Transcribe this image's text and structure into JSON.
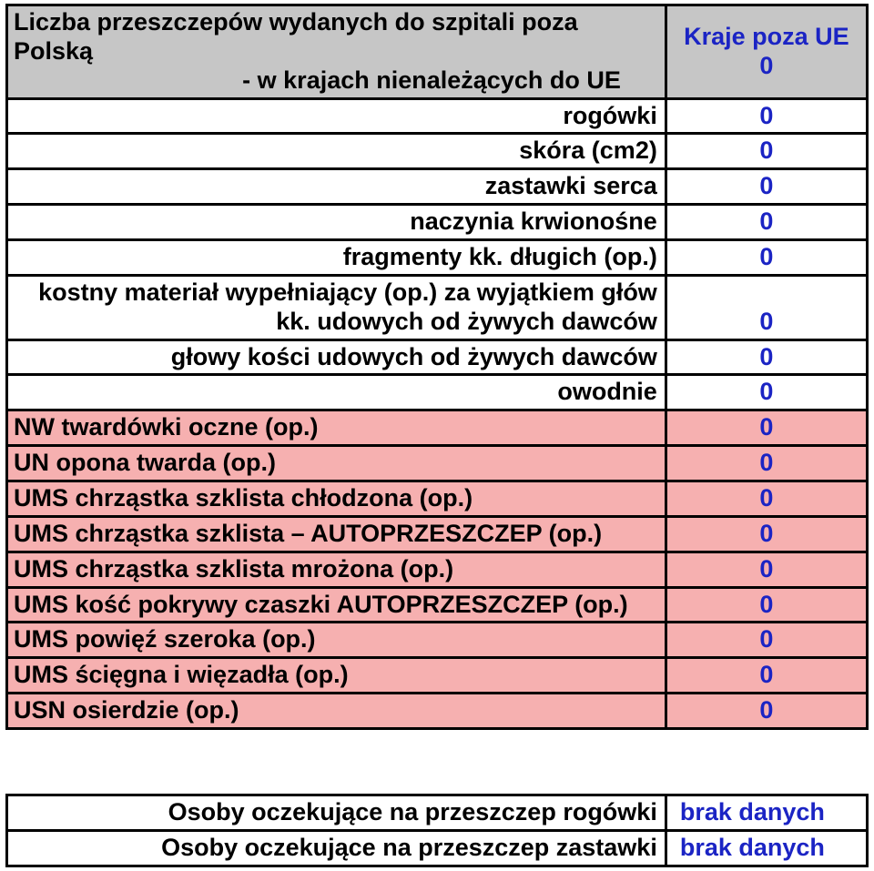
{
  "colors": {
    "border": "#000000",
    "gray_bg": "#c6c6c6",
    "white_bg": "#ffffff",
    "pink_bg": "#f6b0b0",
    "blue_text": "#1b24c4",
    "black_text": "#000000"
  },
  "table1": {
    "header_label_line1": "Liczba przeszczepów wydanych do szpitali poza Polską",
    "header_label_line2": "- w krajach nienależących do UE",
    "header_value_line1": "Kraje poza UE",
    "header_value_line2": "0",
    "rows": [
      {
        "label": "rogówki",
        "value": "0",
        "bg": "#ffffff",
        "align": "right"
      },
      {
        "label": "skóra (cm2)",
        "value": "0",
        "bg": "#ffffff",
        "align": "right"
      },
      {
        "label": "zastawki serca",
        "value": "0",
        "bg": "#ffffff",
        "align": "right"
      },
      {
        "label": "naczynia krwionośne",
        "value": "0",
        "bg": "#ffffff",
        "align": "right"
      },
      {
        "label": "fragmenty kk. długich (op.)",
        "value": "0",
        "bg": "#ffffff",
        "align": "right"
      },
      {
        "label": "kostny materiał wypełniający (op.) za wyjątkiem głów kk. udowych od żywych dawców",
        "value": "0",
        "bg": "#ffffff",
        "align": "right",
        "valign": "bottom"
      },
      {
        "label": "głowy kości udowych od żywych dawców",
        "value": "0",
        "bg": "#ffffff",
        "align": "right"
      },
      {
        "label": "owodnie",
        "value": "0",
        "bg": "#ffffff",
        "align": "right"
      },
      {
        "label": "NW twardówki oczne (op.)",
        "value": "0",
        "bg": "#f6b0b0",
        "align": "left"
      },
      {
        "label": "UN opona twarda (op.)",
        "value": "0",
        "bg": "#f6b0b0",
        "align": "left"
      },
      {
        "label": "UMS chrząstka szklista chłodzona (op.)",
        "value": "0",
        "bg": "#f6b0b0",
        "align": "left"
      },
      {
        "label": "UMS chrząstka szklista – AUTOPRZESZCZEP (op.)",
        "value": "0",
        "bg": "#f6b0b0",
        "align": "left",
        "valign": "bottom"
      },
      {
        "label": "UMS chrząstka szklista mrożona (op.)",
        "value": "0",
        "bg": "#f6b0b0",
        "align": "left"
      },
      {
        "label": "UMS kość pokrywy czaszki AUTOPRZESZCZEP (op.)",
        "value": "0",
        "bg": "#f6b0b0",
        "align": "left",
        "valign": "bottom"
      },
      {
        "label": "UMS powięź szeroka (op.)",
        "value": "0",
        "bg": "#f6b0b0",
        "align": "left"
      },
      {
        "label": "UMS ścięgna i więzadła (op.)",
        "value": "0",
        "bg": "#f6b0b0",
        "align": "left"
      },
      {
        "label": "USN osierdzie (op.)",
        "value": "0",
        "bg": "#f6b0b0",
        "align": "left"
      }
    ]
  },
  "table2": {
    "rows": [
      {
        "label": "Osoby oczekujące na przeszczep rogówki",
        "value": "brak danych"
      },
      {
        "label": "Osoby oczekujące na przeszczep zastawki",
        "value": "brak danych"
      }
    ]
  }
}
